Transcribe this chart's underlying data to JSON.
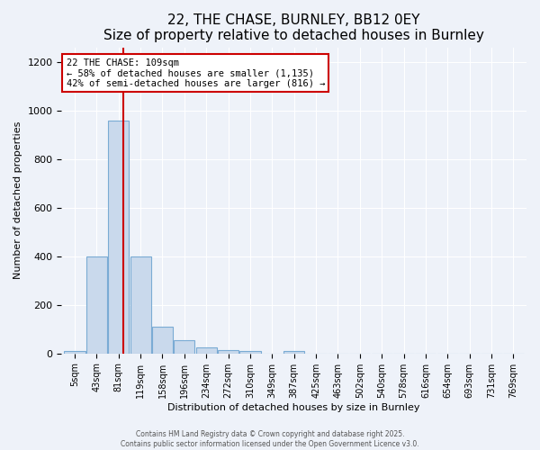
{
  "title1": "22, THE CHASE, BURNLEY, BB12 0EY",
  "title2": "Size of property relative to detached houses in Burnley",
  "xlabel": "Distribution of detached houses by size in Burnley",
  "ylabel": "Number of detached properties",
  "bar_labels": [
    "5sqm",
    "43sqm",
    "81sqm",
    "119sqm",
    "158sqm",
    "196sqm",
    "234sqm",
    "272sqm",
    "310sqm",
    "349sqm",
    "387sqm",
    "425sqm",
    "463sqm",
    "502sqm",
    "540sqm",
    "578sqm",
    "616sqm",
    "654sqm",
    "693sqm",
    "731sqm",
    "769sqm"
  ],
  "bar_values": [
    10,
    400,
    960,
    400,
    110,
    55,
    25,
    12,
    10,
    0,
    10,
    0,
    0,
    0,
    0,
    0,
    0,
    0,
    0,
    0,
    0
  ],
  "bar_color": "#c9d9ec",
  "bar_edgecolor": "#7aabd4",
  "annotation_title": "22 THE CHASE: 109sqm",
  "annotation_line2": "← 58% of detached houses are smaller (1,135)",
  "annotation_line3": "42% of semi-detached houses are larger (816) →",
  "annotation_box_color": "#ffffff",
  "annotation_border_color": "#cc0000",
  "footer1": "Contains HM Land Registry data © Crown copyright and database right 2025.",
  "footer2": "Contains public sector information licensed under the Open Government Licence v3.0.",
  "ylim": [
    0,
    1260
  ],
  "yticks": [
    0,
    200,
    400,
    600,
    800,
    1000,
    1200
  ],
  "background_color": "#eef2f9",
  "grid_color": "#ffffff",
  "title_fontsize": 11,
  "axis_fontsize": 8
}
